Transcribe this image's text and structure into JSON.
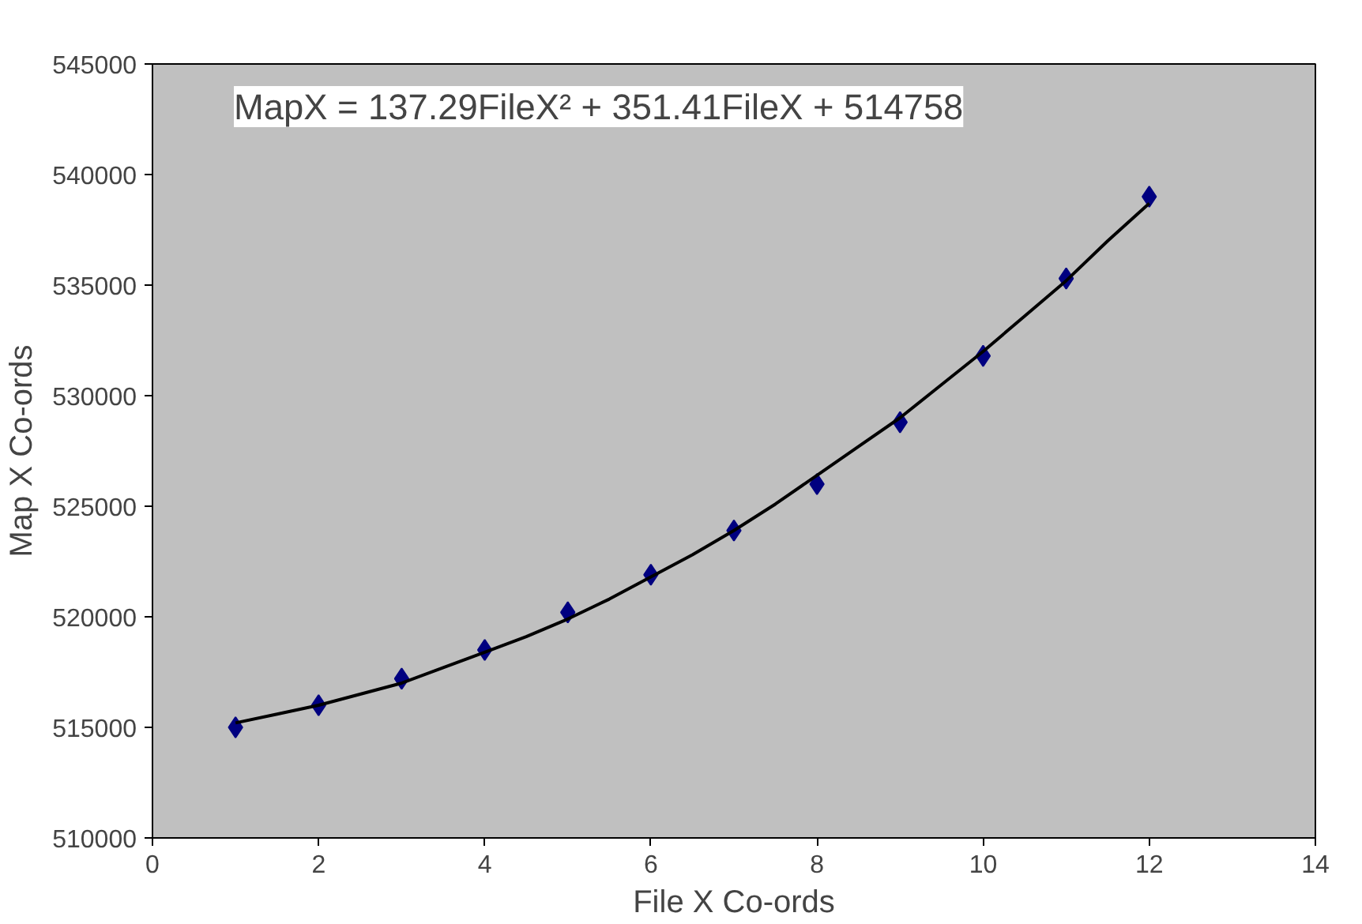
{
  "chart_data": {
    "type": "scatter",
    "xlabel": "File X Co-ords",
    "ylabel": "Map X Co-ords",
    "annotations": [
      "MapX = 137.29FileX² + 351.41FileX + 514758"
    ],
    "xlim": [
      0,
      14
    ],
    "xticks": [
      0,
      2,
      4,
      6,
      8,
      10,
      12,
      14
    ],
    "ylim": [
      510000,
      545000
    ],
    "yticks": [
      510000,
      515000,
      520000,
      525000,
      530000,
      535000,
      540000,
      545000
    ],
    "grid": false,
    "series": [
      {
        "color": "#000080",
        "marker": "diamond",
        "x": [
          1,
          2,
          3,
          4,
          5,
          6,
          7,
          8,
          9,
          10,
          11,
          12
        ],
        "values": [
          515000,
          516000,
          517200,
          518500,
          520200,
          521900,
          523900,
          526000,
          528800,
          531800,
          535300,
          539000
        ]
      },
      {
        "type": "line",
        "color": "#000000",
        "marker": "none",
        "line_style": "solid",
        "x": [
          1,
          1.5,
          2,
          2.5,
          3,
          3.5,
          4,
          4.5,
          5,
          5.5,
          6,
          6.5,
          7,
          7.5,
          8,
          8.5,
          9,
          9.5,
          10,
          10.5,
          11,
          11.5,
          12
        ],
        "values": [
          515200,
          515600,
          516000,
          516500,
          517000,
          517700,
          518400,
          519100,
          519900,
          520800,
          521800,
          522800,
          523900,
          525100,
          526400,
          527700,
          529000,
          530500,
          532000,
          533600,
          535200,
          537000,
          538700
        ]
      }
    ]
  }
}
